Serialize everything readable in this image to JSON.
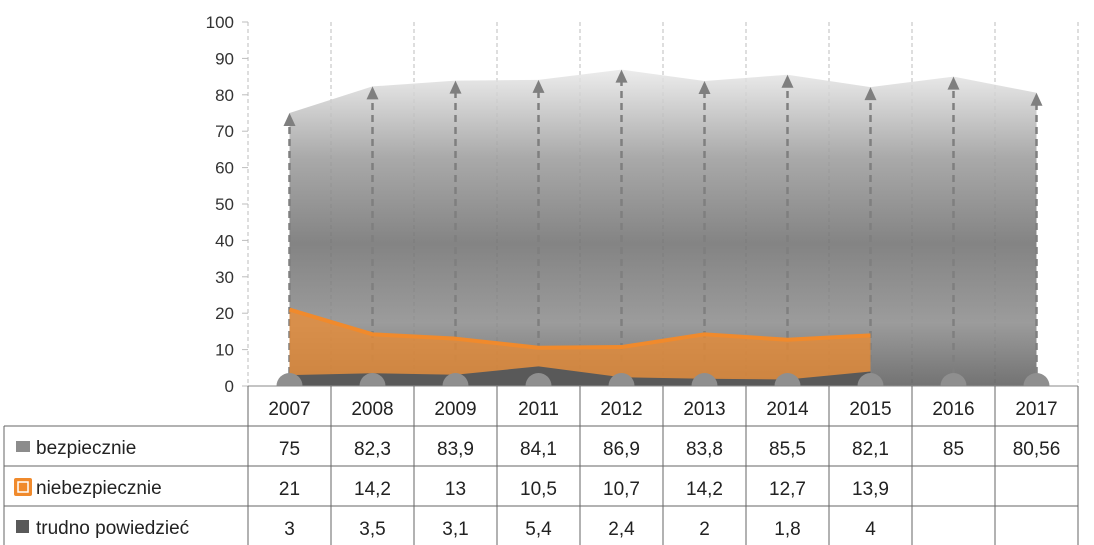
{
  "chart_data": {
    "type": "area",
    "x": [
      "2007",
      "2008",
      "2009",
      "2011",
      "2012",
      "2013",
      "2014",
      "2015",
      "2016",
      "2017"
    ],
    "ylim": [
      0,
      100
    ],
    "yticks": [
      "0",
      "10",
      "20",
      "30",
      "40",
      "50",
      "60",
      "70",
      "80",
      "90",
      "100"
    ],
    "grid": "vertical dashed",
    "legend": "data table below chart",
    "series": [
      {
        "name": "bezpiecznie",
        "values": [
          75,
          82.3,
          83.9,
          84.1,
          86.9,
          83.8,
          85.5,
          82.1,
          85,
          80.56
        ],
        "labels": [
          "75",
          "82,3",
          "83,9",
          "84,1",
          "86,9",
          "83,8",
          "85,5",
          "82,1",
          "85",
          "80,56"
        ],
        "color": "#8c8c8c",
        "style": "photo area with dashed arrows"
      },
      {
        "name": "niebezpiecznie",
        "values": [
          21,
          14.2,
          13,
          10.5,
          10.7,
          14.2,
          12.7,
          13.9,
          null,
          null
        ],
        "labels": [
          "21",
          "14,2",
          "13",
          "10,5",
          "10,7",
          "14,2",
          "12,7",
          "13,9",
          "",
          ""
        ],
        "color": "#f08a2c"
      },
      {
        "name": "trudno powiedzieć",
        "values": [
          3,
          3.5,
          3.1,
          5.4,
          2.4,
          2,
          1.8,
          4,
          null,
          null
        ],
        "labels": [
          "3",
          "3,5",
          "3,1",
          "5,4",
          "2,4",
          "2",
          "1,8",
          "4",
          "",
          ""
        ],
        "color": "#595959"
      }
    ]
  }
}
